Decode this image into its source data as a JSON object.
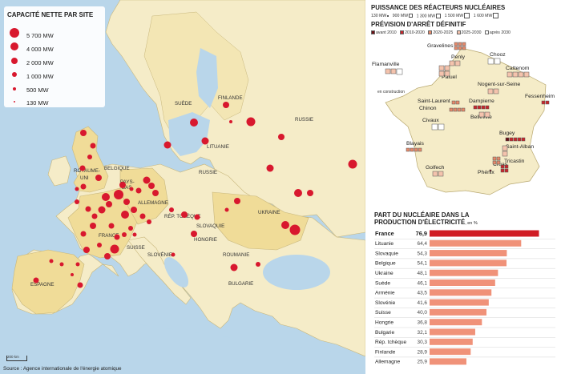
{
  "map": {
    "legend": {
      "title": "CAPACITÉ NETTE PAR SITE",
      "items": [
        {
          "label": "5 700 MW",
          "capacity_mw": 5700
        },
        {
          "label": "4 000 MW",
          "capacity_mw": 4000
        },
        {
          "label": "2 000 MW",
          "capacity_mw": 2000
        },
        {
          "label": "1 000 MW",
          "capacity_mw": 1000
        },
        {
          "label": "500 MW",
          "capacity_mw": 500
        },
        {
          "label": "130 MW",
          "capacity_mw": 130
        }
      ]
    },
    "country_labels": {
      "suede": "SUÈDE",
      "finlande": "FINLANDE",
      "russie_east": "RUSSIE",
      "lituanie": "LITUANIE",
      "russie_kalin": "RUSSIE",
      "royaume_uni_1": "ROYAUME-",
      "royaume_uni_2": "UNI",
      "belgique": "BELGIQUE",
      "pays_bas_1": "PAYS-",
      "pays_bas_2": "BAS",
      "allemagne": "ALLEMAGNE",
      "rep_tcheque": "RÉP. TCHÈQUE",
      "slovaquie": "SLOVAQUIE",
      "ukraine": "UKRAINE",
      "hongrie": "HONGRIE",
      "france": "FRANCE",
      "suisse": "SUISSE",
      "slovenie": "SLOVÉNIE",
      "roumanie": "ROUMANIE",
      "espagne": "ESPAGNE",
      "bulgarie": "BULGARIE"
    },
    "scale_label": "200 km",
    "source": "Source : Agence internationale de l'énergie atomique",
    "colors": {
      "sea": "#b9d6ea",
      "land": "#f5ecc8",
      "nuclear_country": "#f0dc98",
      "site": "#d8182e"
    }
  },
  "reactors": {
    "title": "PUISSANCE DES RÉACTEURS NUCLÉAIRES",
    "power_legend": [
      "130 MW",
      "900 MW",
      "1 300 MW",
      "1 500 MW",
      "1 600 MW"
    ],
    "closure_title": "PRÉVISION D'ARRÊT DÉFINITIF",
    "closure_legend": [
      {
        "label": "avant 2010",
        "color": "#6b0f14"
      },
      {
        "label": "2010-2020",
        "color": "#c8262c"
      },
      {
        "label": "2020-2025",
        "color": "#e88a6a"
      },
      {
        "label": "2025-2030",
        "color": "#f4c3ad"
      },
      {
        "label": "après 2030",
        "color": "#ffffff"
      }
    ],
    "sites": {
      "gravelines": "Gravelines",
      "penly": "Penly",
      "chooz": "Chooz",
      "flamanville": "Flamanville",
      "cattenom": "Cattenom",
      "paluel": "Paluel",
      "nogent": "Nogent-sur-Seine",
      "fessenheim": "Fessenheim",
      "saint_laurent": "Saint-Laurent",
      "chinon": "Chinon",
      "dampierre": "Dampierre",
      "civaux": "Civaux",
      "belleville": "Belleville",
      "bugey": "Bugey",
      "saint_alban": "Saint-Alban",
      "blayais": "Blayais",
      "cruas": "Cruas",
      "tricastin": "Tricastin",
      "golfech": "Golfech",
      "phenix": "Phénix"
    },
    "construction_label": "en construction"
  },
  "nuclear_share": {
    "title_line1": "PART DU NUCLÉAIRE DANS LA",
    "title_line2": "PRODUCTION D'ÉLECTRICITÉ",
    "unit": ", en %"
  },
  "chart_data": {
    "type": "bar",
    "title": "PART DU NUCLÉAIRE DANS LA PRODUCTION D'ÉLECTRICITÉ, en %",
    "categories": [
      "France",
      "Lituanie",
      "Slovaquie",
      "Belgique",
      "Ukraine",
      "Suède",
      "Arménie",
      "Slovénie",
      "Suisse",
      "Hongrie",
      "Bulgarie",
      "Rép. tchèque",
      "Finlande",
      "Allemagne"
    ],
    "values": [
      76.9,
      64.4,
      54.3,
      54.1,
      48.1,
      46.1,
      43.5,
      41.6,
      40.0,
      36.8,
      32.1,
      30.3,
      28.9,
      25.9
    ],
    "value_labels": [
      "76,9",
      "64,4",
      "54,3",
      "54,1",
      "48,1",
      "46,1",
      "43,5",
      "41,6",
      "40,0",
      "36,8",
      "32,1",
      "30,3",
      "28,9",
      "25,9"
    ],
    "xlim": [
      0,
      80
    ],
    "orientation": "horizontal",
    "colors": {
      "highlight": "#d01c24",
      "default": "#f09279"
    }
  }
}
